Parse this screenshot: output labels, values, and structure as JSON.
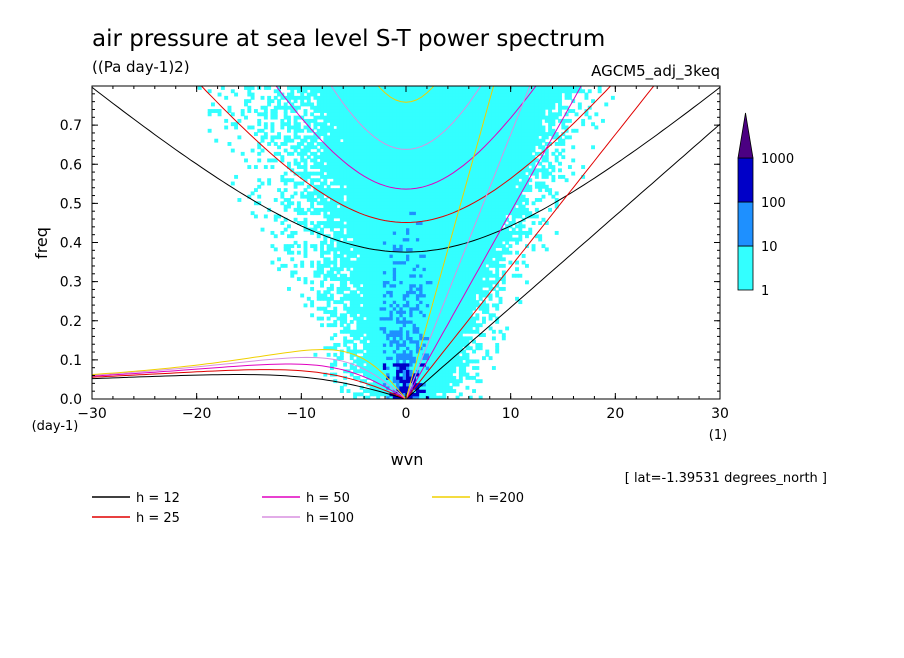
{
  "chart_data": {
    "type": "heatmap",
    "title": "air pressure at sea level S-T power spectrum",
    "units": "((Pa day-1)2)",
    "model": "AGCM5_adj_3keq",
    "xlabel": "wvn",
    "xunit": "(1)",
    "ylabel": "freq",
    "yunit": "(day-1)",
    "xlim": [
      -30,
      30
    ],
    "ylim": [
      0,
      0.8
    ],
    "xticks": [
      "-30",
      "-20",
      "-10",
      "0",
      "10",
      "20",
      "30"
    ],
    "yticks": [
      "0.0",
      "0.1",
      "0.2",
      "0.3",
      "0.4",
      "0.5",
      "0.6",
      "0.7"
    ],
    "note": "[ lat=-1.39531 degrees_north ]",
    "colorbar": {
      "labels": [
        "1",
        "10",
        "100",
        "1000"
      ],
      "colors": [
        "#33ffff",
        "#1e90ff",
        "#0000c8",
        "#4b0082"
      ]
    },
    "dispersion_curves": [
      {
        "label": "h = 12",
        "h": 12,
        "color": "#000000"
      },
      {
        "label": "h = 25",
        "h": 25,
        "color": "#e00000"
      },
      {
        "label": "h = 50",
        "h": 50,
        "color": "#e000c0"
      },
      {
        "label": "h =100",
        "h": 100,
        "color": "#d890e0"
      },
      {
        "label": "h =200",
        "h": 200,
        "color": "#f0d000"
      }
    ]
  }
}
